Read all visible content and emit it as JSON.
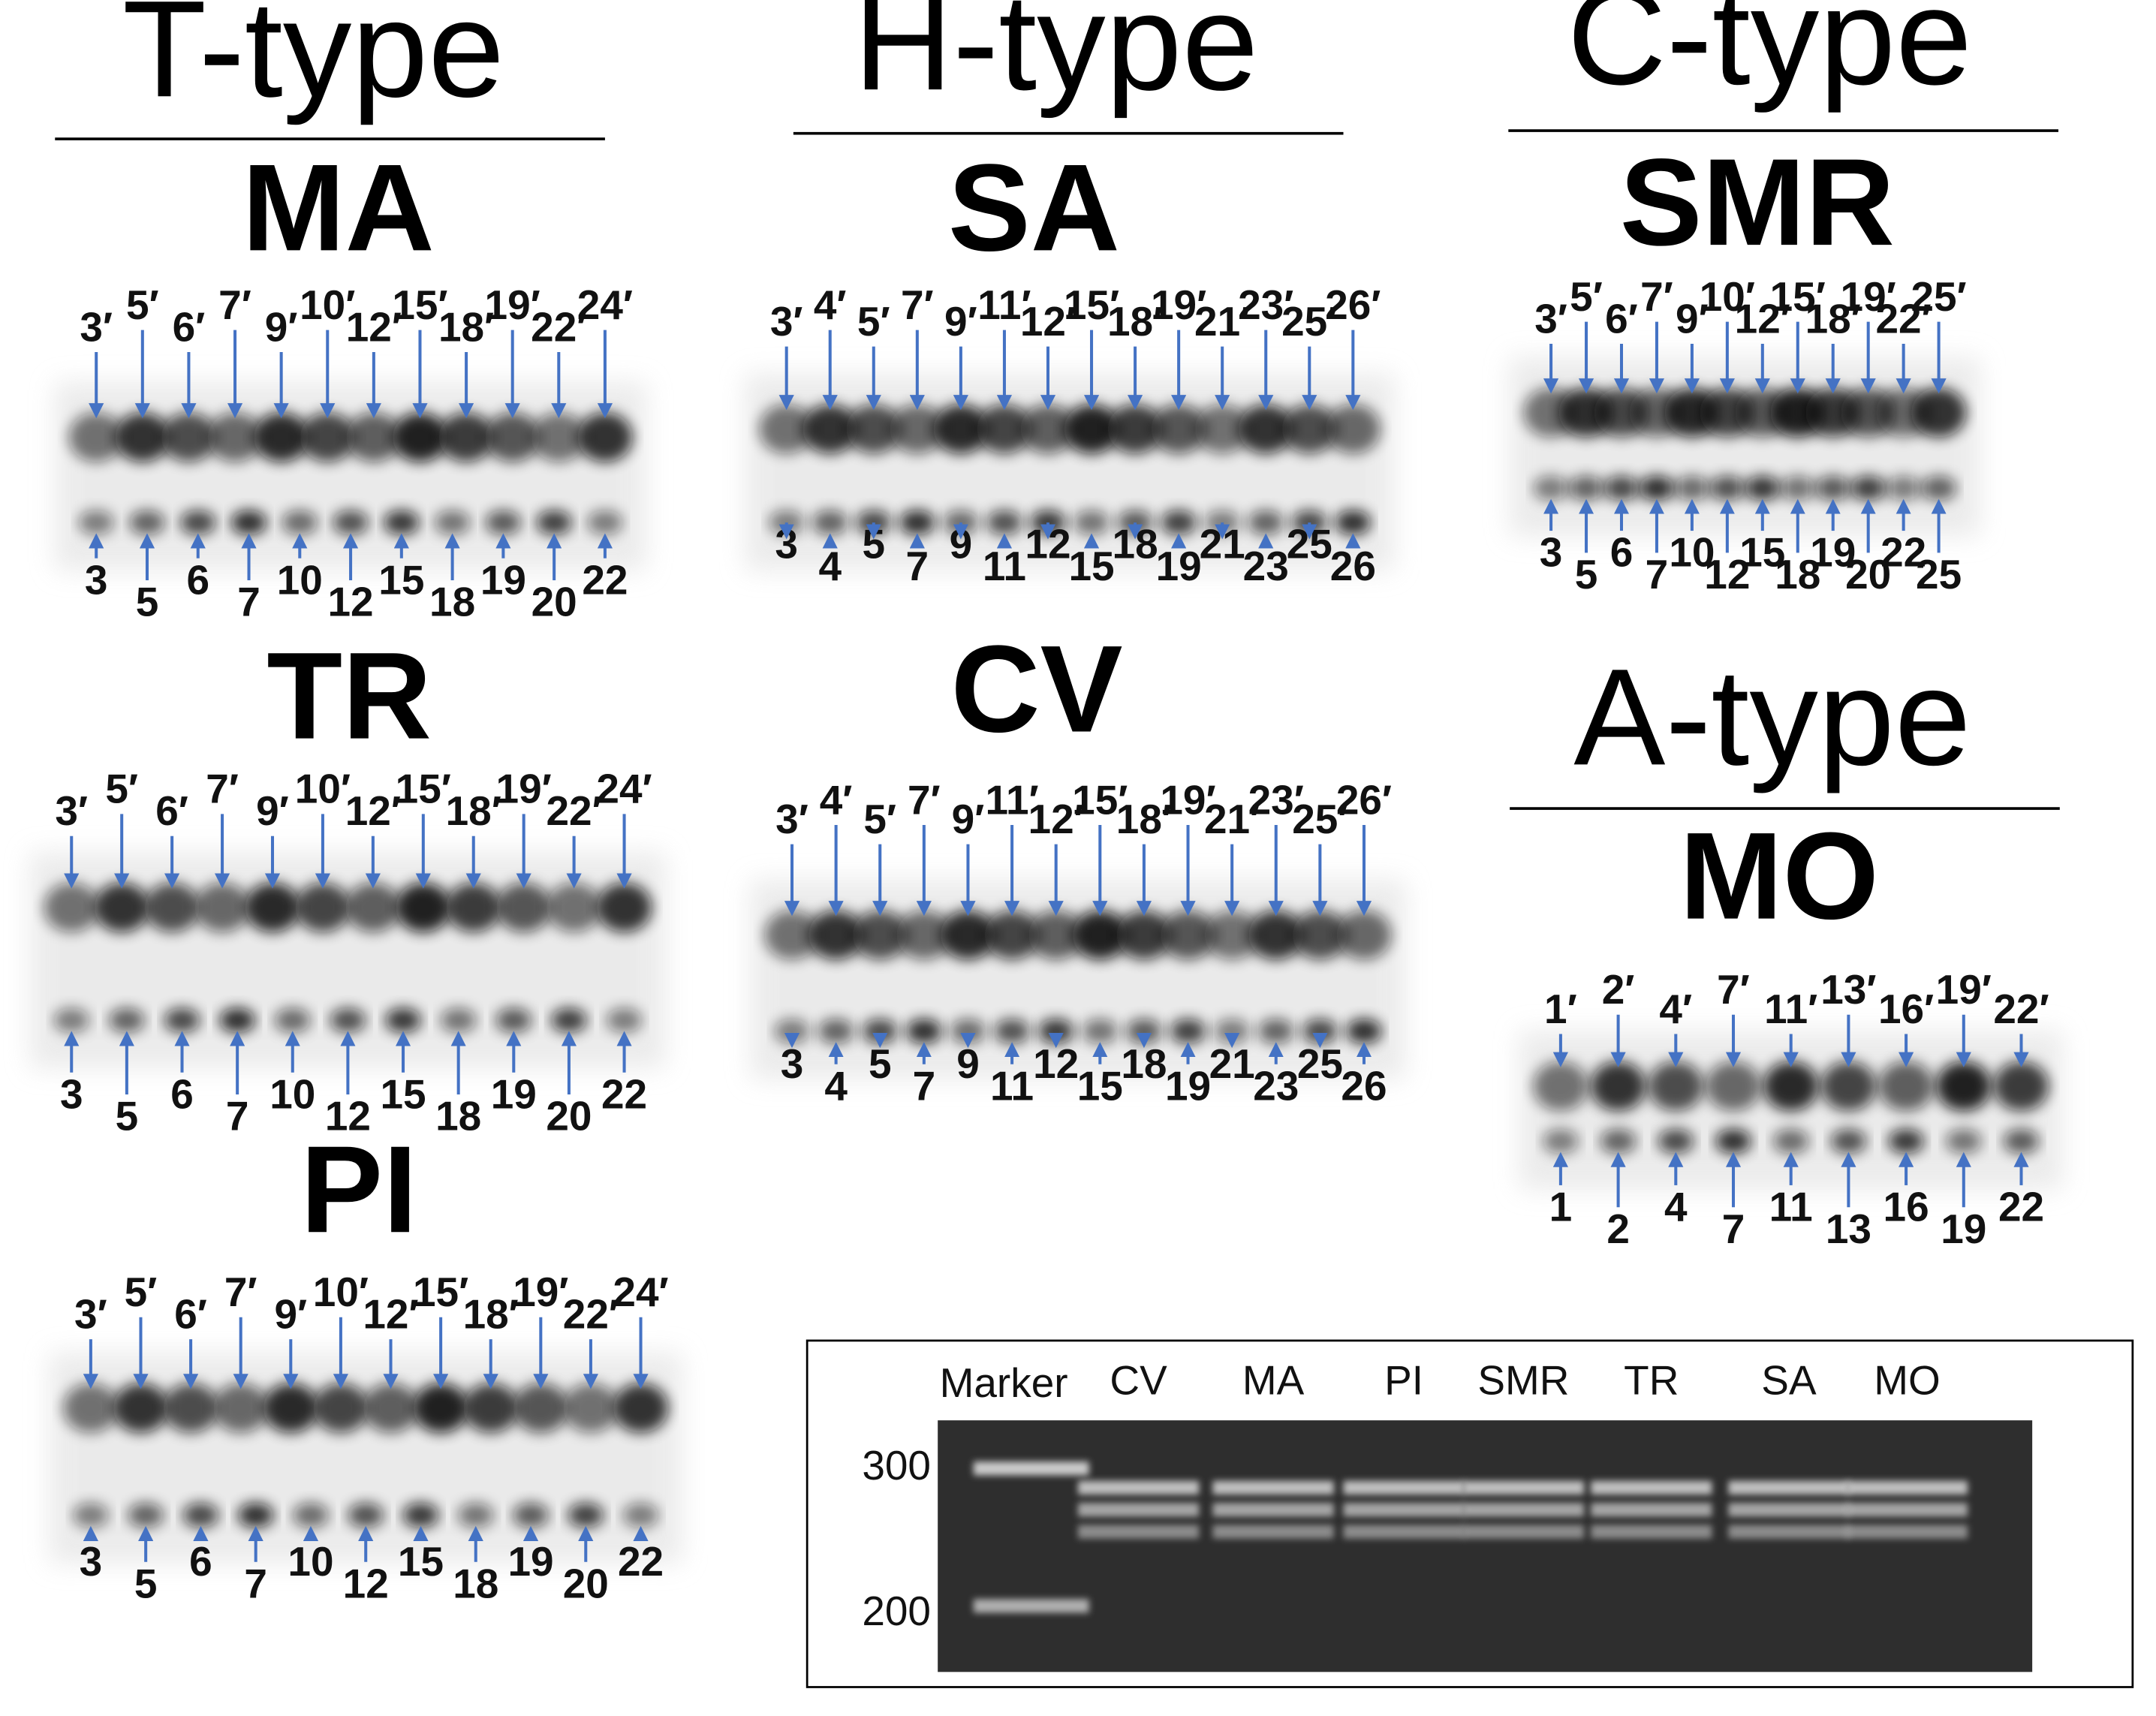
{
  "colors": {
    "arrow": "#4472c4",
    "ink": "#000000"
  },
  "groups": [
    {
      "title": "T-type"
    },
    {
      "title": "H-type"
    },
    {
      "title": "C-type"
    },
    {
      "title": "A-type"
    }
  ],
  "panels": [
    {
      "id": "MA",
      "title": "MA",
      "top": [
        "3′",
        "5′",
        "6′",
        "7′",
        "9′",
        "10′",
        "12′",
        "15′",
        "18′",
        "19′",
        "22′",
        "24′"
      ],
      "bottom": [
        "3",
        "5",
        "6",
        "7",
        "10",
        "12",
        "15",
        "18",
        "19",
        "20",
        "22"
      ]
    },
    {
      "id": "TR",
      "title": "TR",
      "top": [
        "3′",
        "5′",
        "6′",
        "7′",
        "9′",
        "10′",
        "12′",
        "15′",
        "18′",
        "19′",
        "22′",
        "24′"
      ],
      "bottom": [
        "3",
        "5",
        "6",
        "7",
        "10",
        "12",
        "15",
        "18",
        "19",
        "20",
        "22"
      ]
    },
    {
      "id": "PI",
      "title": "PI",
      "top": [
        "3′",
        "5′",
        "6′",
        "7′",
        "9′",
        "10′",
        "12′",
        "15′",
        "18′",
        "19′",
        "22′",
        "24′"
      ],
      "bottom": [
        "3",
        "5",
        "6",
        "7",
        "10",
        "12",
        "15",
        "18",
        "19",
        "20",
        "22"
      ]
    },
    {
      "id": "SA",
      "title": "SA",
      "top": [
        "3′",
        "4′",
        "5′",
        "7′",
        "9′",
        "11′",
        "12′",
        "15′",
        "18′",
        "19′",
        "21′",
        "23′",
        "25′",
        "26′"
      ],
      "bottom": [
        "3",
        "4",
        "5",
        "7",
        "9",
        "11",
        "12",
        "15",
        "18",
        "19",
        "21",
        "23",
        "25",
        "26"
      ]
    },
    {
      "id": "CV",
      "title": "CV",
      "top": [
        "3′",
        "4′",
        "5′",
        "7′",
        "9′",
        "11′",
        "12′",
        "15′",
        "18′",
        "19′",
        "21′",
        "23′",
        "25′",
        "26′"
      ],
      "bottom": [
        "3",
        "4",
        "5",
        "7",
        "9",
        "11",
        "12",
        "15",
        "18",
        "19",
        "21",
        "23",
        "25",
        "26"
      ]
    },
    {
      "id": "SMR",
      "title": "SMR",
      "top": [
        "3′",
        "5′",
        "6′",
        "7′",
        "9′",
        "10′",
        "12′",
        "15′",
        "18′",
        "19′",
        "22′",
        "25′"
      ],
      "bottom": [
        "3",
        "5",
        "6",
        "7",
        "10",
        "12",
        "15",
        "18",
        "19",
        "20",
        "22",
        "25"
      ]
    },
    {
      "id": "MO",
      "title": "MO",
      "top": [
        "1′",
        "2′",
        "4′",
        "7′",
        "11′",
        "13′",
        "16′",
        "19′",
        "22′"
      ],
      "bottom": [
        "1",
        "2",
        "4",
        "7",
        "11",
        "13",
        "16",
        "19",
        "22"
      ]
    }
  ],
  "gel": {
    "marker_label": "Marker",
    "lanes": [
      "CV",
      "MA",
      "PI",
      "SMR",
      "TR",
      "SA",
      "MO"
    ],
    "size_markers": [
      "300",
      "200"
    ]
  }
}
